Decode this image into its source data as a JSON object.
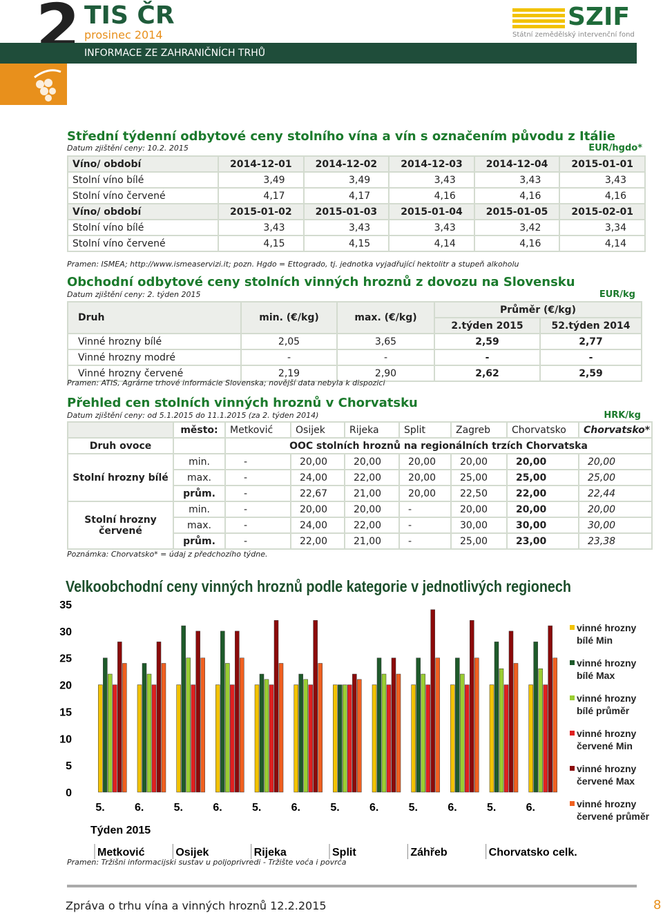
{
  "header": {
    "number": "2",
    "brand": "TIS ČR",
    "issue": "prosinec 2014",
    "banner": "INFORMACE ZE ZAHRANIČNÍCH TRHŮ",
    "logo": "SZIF",
    "logo_sub": "Státní zemědělský intervenční fond"
  },
  "italy": {
    "title": "Střední týdenní odbytové ceny stolního vína a vín s označením původu z Itálie",
    "date": "Datum zjištění ceny: 10.2. 2015",
    "unit": "EUR/hgdo*",
    "rows": [
      [
        "Víno/ období",
        "2014-12-01",
        "2014-12-02",
        "2014-12-03",
        "2014-12-04",
        "2015-01-01"
      ],
      [
        "Stolní víno bílé",
        "3,49",
        "3,49",
        "3,43",
        "3,43",
        "3,43"
      ],
      [
        "Stolní víno červené",
        "4,17",
        "4,17",
        "4,16",
        "4,16",
        "4,16"
      ],
      [
        "Víno/ období",
        "2015-01-02",
        "2015-01-03",
        "2015-01-04",
        "2015-01-05",
        "2015-02-01"
      ],
      [
        "Stolní víno bílé",
        "3,43",
        "3,43",
        "3,43",
        "3,42",
        "3,34"
      ],
      [
        "Stolní víno červené",
        "4,15",
        "4,15",
        "4,14",
        "4,16",
        "4,14"
      ]
    ],
    "source": "Pramen: ISMEA; http://www.ismeaservizi.it; pozn. Hgdo = Ettogrado, tj. jednotka vyjadřující hektolitr a stupeň alkoholu"
  },
  "slovakia": {
    "title": "Obchodní odbytové ceny stolních vinných hroznů z dovozu na Slovensku",
    "date": "Datum zjištění ceny: 2. týden 2015",
    "unit": "EUR/kg",
    "header": {
      "druh": "Druh",
      "min": "min. (€/kg)",
      "max": "max. (€/kg)",
      "avg": "Průměr (€/kg)",
      "w1": "2.týden 2015",
      "w2": "52.týden 2014"
    },
    "rows": [
      [
        "Vinné hrozny bílé",
        "2,05",
        "3,65",
        "2,59",
        "2,77"
      ],
      [
        "Vinné hrozny modré",
        "-",
        "-",
        "-",
        "-"
      ],
      [
        "Vinné hrozny červené",
        "2,19",
        "2,90",
        "2,62",
        "2,59"
      ]
    ],
    "source": "Pramen: ATIS, Agrárne trhové informácie Slovenska; novější data nebyla k dispozici"
  },
  "croatia": {
    "title": "Přehled cen stolních vinných hroznů v Chorvatsku",
    "date": "Datum zjištění ceny: od 5.1.2015 do 11.1.2015  (za 2. týden 2014)",
    "unit": "HRK/kg",
    "city_label": "město:",
    "cities": [
      "Metković",
      "Osijek",
      "Rijeka",
      "Split",
      "Zagreb",
      "Chorvatsko",
      "Chorvatsko*"
    ],
    "druh": "Druh ovoce",
    "ooc": "OOC stolních hroznů na regionálních trzích Chorvatska",
    "groups": [
      {
        "name": "Stolní hrozny bílé",
        "rows": [
          [
            "min.",
            "-",
            "20,00",
            "20,00",
            "20,00",
            "20,00",
            "20,00",
            "20,00"
          ],
          [
            "max.",
            "-",
            "24,00",
            "22,00",
            "20,00",
            "25,00",
            "25,00",
            "25,00"
          ],
          [
            "prům.",
            "-",
            "22,67",
            "21,00",
            "20,00",
            "22,50",
            "22,00",
            "22,44"
          ]
        ]
      },
      {
        "name": "Stolní hrozny červené",
        "rows": [
          [
            "min.",
            "-",
            "20,00",
            "20,00",
            "-",
            "20,00",
            "20,00",
            "20,00"
          ],
          [
            "max.",
            "-",
            "24,00",
            "22,00",
            "-",
            "30,00",
            "30,00",
            "30,00"
          ],
          [
            "prům.",
            "-",
            "22,00",
            "21,00",
            "-",
            "25,00",
            "23,00",
            "23,38"
          ]
        ]
      }
    ],
    "note": "Poznámka: Chorvatsko* = údaj z předchozího týdne."
  },
  "chart_data": {
    "type": "bar",
    "title": "Velkoobchodní ceny vinných hroznů podle kategorie v jednotlivých regionech",
    "categories": [
      "5.",
      "6.",
      "5.",
      "6.",
      "5.",
      "6.",
      "5.",
      "6.",
      "5.",
      "6.",
      "5.",
      "6."
    ],
    "groups": [
      "Metković",
      "Osijek",
      "Rijeka",
      "Split",
      "Záhřeb",
      "Chorvatsko celk."
    ],
    "x_label": "Týden 2015",
    "series": [
      {
        "name": "vinné hrozny bílé Min",
        "color": "#f2c200",
        "values": [
          20,
          20,
          20,
          20,
          20,
          20,
          20,
          20,
          20,
          20,
          20,
          20
        ]
      },
      {
        "name": "vinné hrozny bílé Max",
        "color": "#1e5a2a",
        "values": [
          25,
          24,
          31,
          30,
          22,
          22,
          20,
          25,
          25,
          25,
          28,
          28
        ]
      },
      {
        "name": "vinné hrozny bílé průměr",
        "color": "#9acd32",
        "values": [
          22,
          22,
          25,
          24,
          21,
          21,
          20,
          22,
          22,
          22,
          23,
          23
        ]
      },
      {
        "name": "vinné hrozny červené Min",
        "color": "#e02020",
        "values": [
          20,
          20,
          20,
          20,
          20,
          20,
          20,
          20,
          20,
          20,
          20,
          20
        ]
      },
      {
        "name": "vinné hrozny červené Max",
        "color": "#8b0a0a",
        "values": [
          28,
          28,
          30,
          30,
          32,
          32,
          22,
          25,
          34,
          32,
          30,
          31
        ]
      },
      {
        "name": "vinné hrozny červené průměr",
        "color": "#f06020",
        "values": [
          24,
          24,
          25,
          25,
          24,
          24,
          21,
          22,
          25,
          25,
          24,
          25
        ]
      }
    ],
    "ylim": [
      0,
      35
    ],
    "yticks": [
      0,
      5,
      10,
      15,
      20,
      25,
      30,
      35
    ],
    "source": "Pramen: Tržišni informacijski sustav u poljoprivredi - Tržište voća i povrća"
  },
  "footer": {
    "text": "Zpráva o trhu vína a vinných hroznů 12.2.2015",
    "page": "8"
  }
}
